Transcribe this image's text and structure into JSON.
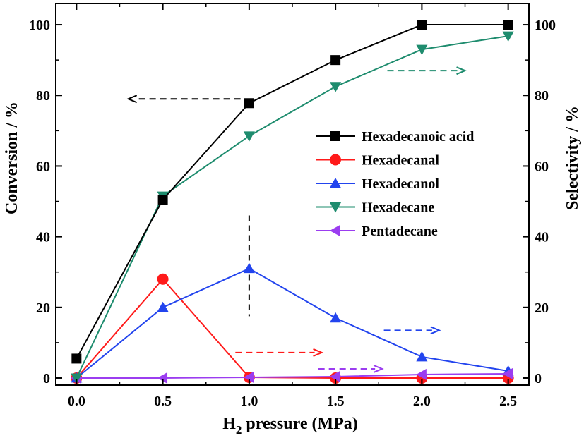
{
  "chart_data": {
    "type": "line",
    "x": [
      0.0,
      0.5,
      1.0,
      1.5,
      2.0,
      2.5
    ],
    "x_tick_labels": [
      "0.0",
      "0.5",
      "1.0",
      "1.5",
      "2.0",
      "2.5"
    ],
    "xlim": [
      -0.12,
      2.62
    ],
    "xlabel": {
      "main": "H",
      "sub": "2",
      "rest": " pressure (MPa)"
    },
    "ylim": [
      -2,
      106
    ],
    "y_tick_labels": [
      "0",
      "20",
      "40",
      "60",
      "80",
      "100"
    ],
    "ylabel_left": "Conversion / %",
    "ylabel_right": "Selectivity / %",
    "legend_position": "right-middle",
    "grid": false,
    "series": [
      {
        "name": "Hexadecanoic acid",
        "axis": "left",
        "color": "#000000",
        "marker": "square",
        "values": [
          5.5,
          50.5,
          77.8,
          90,
          100,
          100
        ]
      },
      {
        "name": "Hexadecanal",
        "axis": "right",
        "color": "#ff1a1a",
        "marker": "circle",
        "values": [
          0,
          28,
          0.2,
          0,
          0,
          0
        ]
      },
      {
        "name": "Hexadecanol",
        "axis": "right",
        "color": "#2244ee",
        "marker": "triangle-up",
        "values": [
          0,
          20,
          31,
          17,
          6,
          2
        ]
      },
      {
        "name": "Hexadecane",
        "axis": "right",
        "color": "#1e8c6e",
        "marker": "triangle-down",
        "values": [
          0,
          51.5,
          68.5,
          82.5,
          93,
          96.8
        ]
      },
      {
        "name": "Pentadecane",
        "axis": "right",
        "color": "#9b3df0",
        "marker": "triangle-left",
        "values": [
          0,
          0,
          0.2,
          0.4,
          1,
          1.2
        ]
      }
    ],
    "annotations": [
      {
        "type": "dashed-arrow",
        "direction": "left",
        "color": "#000000",
        "x_from": 0.95,
        "x_to": 0.3,
        "y": 79
      },
      {
        "type": "dashed-arrow",
        "direction": "right",
        "color": "#1e8c6e",
        "x_from": 1.8,
        "x_to": 2.25,
        "y": 87
      },
      {
        "type": "dashed-arrow",
        "direction": "right",
        "color": "#ff1a1a",
        "x_from": 0.92,
        "x_to": 1.42,
        "y": 7.2
      },
      {
        "type": "dashed-arrow",
        "direction": "right",
        "color": "#2244ee",
        "x_from": 1.78,
        "x_to": 2.1,
        "y": 13.5
      },
      {
        "type": "dashed-arrow",
        "direction": "right",
        "color": "#9b3df0",
        "x_from": 1.4,
        "x_to": 1.77,
        "y": 2.6
      },
      {
        "type": "dashed-vline",
        "color": "#000000",
        "x": 1.0,
        "y_from": 17.5,
        "y_to": 46
      }
    ]
  }
}
